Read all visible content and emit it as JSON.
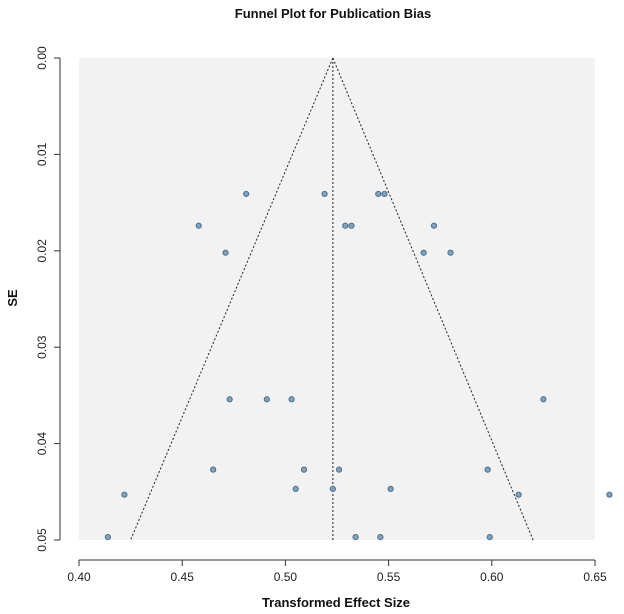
{
  "chart_data": {
    "type": "scatter",
    "title": "Funnel Plot for Publication Bias",
    "xlabel": "Transformed Effect Size",
    "ylabel": "SE",
    "xlim": [
      0.4,
      0.65
    ],
    "ylim": [
      0.0,
      0.05
    ],
    "y_inverted": true,
    "x_ticks": [
      "0.40",
      "0.45",
      "0.50",
      "0.55",
      "0.60",
      "0.65"
    ],
    "y_ticks": [
      "0.00",
      "0.01",
      "0.02",
      "0.03",
      "0.04",
      "0.05"
    ],
    "center_estimate": 0.523,
    "funnel_bounds_at_max_se": [
      0.425,
      0.62
    ],
    "colors": {
      "point_fill": "#7fa2bf",
      "point_stroke": "#4f6f8a",
      "plot_background": "#f2f2f2"
    },
    "points": [
      {
        "x": 0.481,
        "y": 0.0141
      },
      {
        "x": 0.519,
        "y": 0.0141
      },
      {
        "x": 0.545,
        "y": 0.0141
      },
      {
        "x": 0.548,
        "y": 0.0141
      },
      {
        "x": 0.458,
        "y": 0.0174
      },
      {
        "x": 0.529,
        "y": 0.0174
      },
      {
        "x": 0.532,
        "y": 0.0174
      },
      {
        "x": 0.572,
        "y": 0.0174
      },
      {
        "x": 0.471,
        "y": 0.0202
      },
      {
        "x": 0.567,
        "y": 0.0202
      },
      {
        "x": 0.58,
        "y": 0.0202
      },
      {
        "x": 0.473,
        "y": 0.0354
      },
      {
        "x": 0.491,
        "y": 0.0354
      },
      {
        "x": 0.503,
        "y": 0.0354
      },
      {
        "x": 0.625,
        "y": 0.0354
      },
      {
        "x": 0.465,
        "y": 0.0427
      },
      {
        "x": 0.509,
        "y": 0.0427
      },
      {
        "x": 0.526,
        "y": 0.0427
      },
      {
        "x": 0.598,
        "y": 0.0427
      },
      {
        "x": 0.422,
        "y": 0.0453
      },
      {
        "x": 0.505,
        "y": 0.0447
      },
      {
        "x": 0.523,
        "y": 0.0447
      },
      {
        "x": 0.551,
        "y": 0.0447
      },
      {
        "x": 0.613,
        "y": 0.0453
      },
      {
        "x": 0.657,
        "y": 0.0453
      },
      {
        "x": 0.414,
        "y": 0.0497
      },
      {
        "x": 0.534,
        "y": 0.0497
      },
      {
        "x": 0.546,
        "y": 0.0497
      },
      {
        "x": 0.599,
        "y": 0.0497
      }
    ]
  }
}
